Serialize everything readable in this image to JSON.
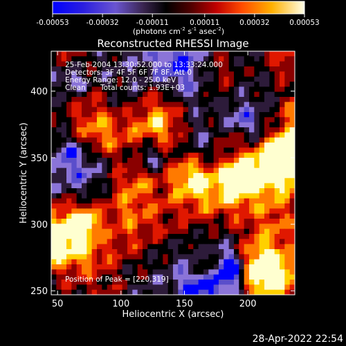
{
  "chart_data": {
    "type": "heatmap",
    "title": "Reconstructed RHESSI Image",
    "xlabel": "Heliocentric X (arcsec)",
    "ylabel": "Heliocentric Y (arcsec)",
    "xlim": [
      45,
      237
    ],
    "ylim": [
      247,
      430
    ],
    "xticks": [
      50,
      100,
      150,
      200
    ],
    "yticks": [
      250,
      300,
      350,
      400
    ],
    "colorbar": {
      "range": [
        -0.00053,
        0.00053
      ],
      "ticks": [
        "-0.00053",
        "-0.00032",
        "-0.00011",
        "0.00011",
        "0.00032",
        "0.00053"
      ],
      "units_label": "(photons cm",
      "units_parts": [
        "(photons cm",
        "-2",
        " s",
        "-1",
        " asec",
        "-2",
        ")"
      ]
    },
    "info": {
      "line1": "25-Feb-2004 13:30:52.000 to 13:33:24.000",
      "line2": "Detectors: 3F 4F 5F 6F 7F 8F, Att 0",
      "line3": "Energy Range: 12.0 - 25.0 keV",
      "line4_a": "Clean",
      "line4_b": "Total counts: 1.93E+03"
    },
    "peak_label": "Position of Peak = [220,319]",
    "peak": [
      220,
      319
    ],
    "timestamp": "28-Apr-2022 22:54",
    "colors": {
      "background": "#000000",
      "axis": "#ffffff",
      "colormap": [
        "#0000ff",
        "#5a4ecb",
        "#8b74d8",
        "#2d1b3a",
        "#000000",
        "#8a0000",
        "#e01800",
        "#ff7a00",
        "#ffd000",
        "#ffffd0"
      ]
    }
  }
}
